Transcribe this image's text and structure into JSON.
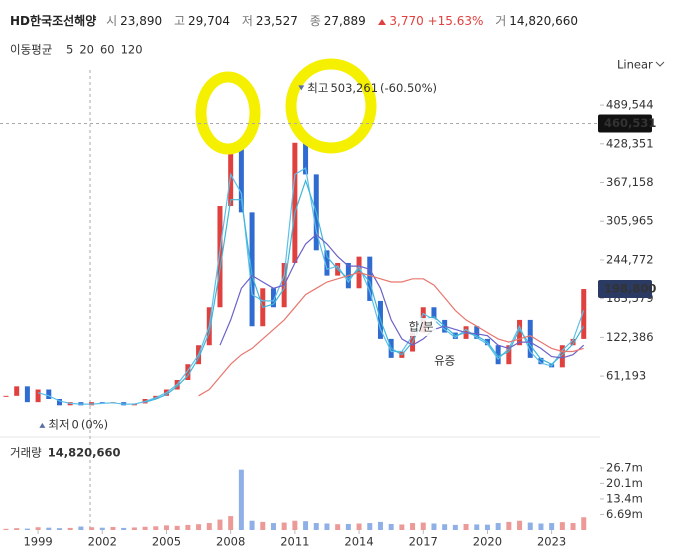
{
  "header": {
    "name": "HD한국조선해양",
    "open_label": "시",
    "open": "23,890",
    "high_label": "고",
    "high": "29,704",
    "low_label": "저",
    "low": "23,527",
    "close_label": "종",
    "close": "27,889",
    "change": "3,770",
    "change_pct": "+15.63%",
    "volume_label": "거",
    "volume": "14,820,660"
  },
  "chart_data": {
    "type": "candlestick",
    "ma_label": "이동평균",
    "scale_label": "Linear",
    "xlim": [
      1997.22,
      2025.26
    ],
    "xticks": [
      1999,
      2002,
      2005,
      2008,
      2011,
      2014,
      2017,
      2020,
      2023
    ],
    "ylim": [
      -24000,
      545000
    ],
    "yticks": [
      {
        "value": 61193,
        "label": "61,193"
      },
      {
        "value": 122386,
        "label": "122,386"
      },
      {
        "value": 183579,
        "label": "183,579"
      },
      {
        "value": 244772,
        "label": "244,772"
      },
      {
        "value": 305965,
        "label": "305,965"
      },
      {
        "value": 367158,
        "label": "367,158"
      },
      {
        "value": 428351,
        "label": "428,351"
      },
      {
        "value": 489544,
        "label": "489,544"
      }
    ],
    "x": [
      1997.5,
      1998,
      1998.5,
      1999,
      1999.5,
      2000,
      2000.5,
      2001,
      2001.5,
      2002,
      2002.5,
      2003,
      2003.5,
      2004,
      2004.5,
      2005,
      2005.5,
      2006,
      2006.5,
      2007,
      2007.5,
      2008,
      2008.5,
      2009,
      2009.5,
      2010,
      2010.5,
      2011,
      2011.5,
      2012,
      2012.5,
      2013,
      2013.5,
      2014,
      2014.5,
      2015,
      2015.5,
      2016,
      2016.5,
      2017,
      2017.5,
      2018,
      2018.5,
      2019,
      2019.5,
      2020,
      2020.5,
      2021,
      2021.5,
      2022,
      2022.5,
      2023,
      2023.5,
      2024,
      2024.5
    ],
    "price": [
      30000,
      45000,
      20000,
      40000,
      25000,
      15000,
      20000,
      15000,
      20000,
      18000,
      20000,
      15000,
      18000,
      25000,
      30000,
      40000,
      55000,
      80000,
      110000,
      170000,
      330000,
      420000,
      320000,
      140000,
      200000,
      170000,
      240000,
      430000,
      380000,
      260000,
      220000,
      240000,
      200000,
      250000,
      180000,
      120000,
      90000,
      100000,
      130000,
      170000,
      150000,
      130000,
      120000,
      140000,
      120000,
      110000,
      80000,
      110000,
      150000,
      90000,
      80000,
      75000,
      110000,
      120000,
      198800
    ],
    "series": [
      {
        "name": "5",
        "color": "#5cc0ea",
        "values": [
          null,
          null,
          null,
          35000,
          30000,
          22000,
          18000,
          17000,
          17000,
          18000,
          19000,
          17000,
          17000,
          21000,
          27000,
          35000,
          48000,
          70000,
          95000,
          140000,
          260000,
          380000,
          350000,
          190000,
          180000,
          180000,
          220000,
          380000,
          390000,
          290000,
          230000,
          235000,
          210000,
          235000,
          195000,
          135000,
          100000,
          100000,
          125000,
          160000,
          150000,
          135000,
          122000,
          135000,
          122000,
          112000,
          88000,
          105000,
          140000,
          100000,
          82000,
          77000,
          102000,
          118000,
          165000
        ]
      },
      {
        "name": "20",
        "color": "#3fb6d8",
        "values": [
          null,
          null,
          null,
          null,
          null,
          null,
          null,
          null,
          null,
          null,
          null,
          null,
          null,
          20000,
          25000,
          32000,
          45000,
          62000,
          90000,
          130000,
          230000,
          340000,
          340000,
          220000,
          170000,
          175000,
          200000,
          320000,
          370000,
          320000,
          250000,
          230000,
          215000,
          230000,
          210000,
          150000,
          105000,
          95000,
          115000,
          150000,
          155000,
          140000,
          125000,
          130000,
          125000,
          115000,
          92000,
          100000,
          135000,
          110000,
          88000,
          80000,
          95000,
          112000,
          140000
        ]
      },
      {
        "name": "60",
        "color": "#6a62c9",
        "values": [
          null,
          null,
          null,
          null,
          null,
          null,
          null,
          null,
          null,
          null,
          null,
          null,
          null,
          null,
          null,
          null,
          null,
          null,
          null,
          null,
          110000,
          150000,
          200000,
          220000,
          210000,
          200000,
          205000,
          240000,
          270000,
          285000,
          270000,
          250000,
          235000,
          235000,
          230000,
          200000,
          150000,
          120000,
          110000,
          120000,
          135000,
          140000,
          135000,
          130000,
          128000,
          125000,
          110000,
          105000,
          115000,
          115000,
          105000,
          92000,
          90000,
          95000,
          110000
        ]
      },
      {
        "name": "120",
        "color": "#e8776f",
        "values": [
          null,
          null,
          null,
          null,
          null,
          null,
          null,
          null,
          null,
          null,
          null,
          null,
          null,
          null,
          null,
          null,
          null,
          null,
          30000,
          40000,
          60000,
          80000,
          95000,
          105000,
          120000,
          135000,
          150000,
          170000,
          190000,
          200000,
          210000,
          215000,
          220000,
          225000,
          220000,
          215000,
          210000,
          210000,
          215000,
          215000,
          205000,
          185000,
          165000,
          150000,
          140000,
          130000,
          120000,
          115000,
          120000,
          125000,
          115000,
          105000,
          100000,
          100000,
          105000
        ]
      }
    ],
    "crosshair": {
      "value": 460531,
      "label": "460,531"
    },
    "last": {
      "value": 198800,
      "label": "198,800"
    },
    "peak": {
      "text": "최고",
      "value": 503261,
      "value_label": "503,261",
      "change": "(-60.50%)",
      "x": 2011.3
    },
    "trough": {
      "text": "최저",
      "value": 0,
      "change": "(0%)",
      "x": 1999.2
    },
    "events": [
      {
        "text": "합/분",
        "x": 2016.9
      },
      {
        "text": "유증",
        "x": 2018.0
      }
    ],
    "volume": {
      "label": "거래량",
      "value_label": "14,820,660",
      "ylim": [
        0,
        38.8
      ],
      "yticks": [
        {
          "value": 6.69,
          "label": "6.69m"
        },
        {
          "value": 13.4,
          "label": "13.4m"
        },
        {
          "value": 20.1,
          "label": "20.1m"
        },
        {
          "value": 26.7,
          "label": "26.7m"
        }
      ],
      "values": [
        0.5,
        0.8,
        0.6,
        1.2,
        1.0,
        0.8,
        0.9,
        1.5,
        1.2,
        1.0,
        1.3,
        0.9,
        1.1,
        1.4,
        1.6,
        2.0,
        1.8,
        2.2,
        2.5,
        3.0,
        4.5,
        6.0,
        26.0,
        4.0,
        3.5,
        3.0,
        3.2,
        4.0,
        3.8,
        3.0,
        2.8,
        2.5,
        2.6,
        2.8,
        3.0,
        3.5,
        2.6,
        2.4,
        3.0,
        3.2,
        2.8,
        2.5,
        2.2,
        2.6,
        2.4,
        2.3,
        3.0,
        3.5,
        4.0,
        3.2,
        2.8,
        3.0,
        3.4,
        3.0,
        5.5
      ]
    }
  }
}
